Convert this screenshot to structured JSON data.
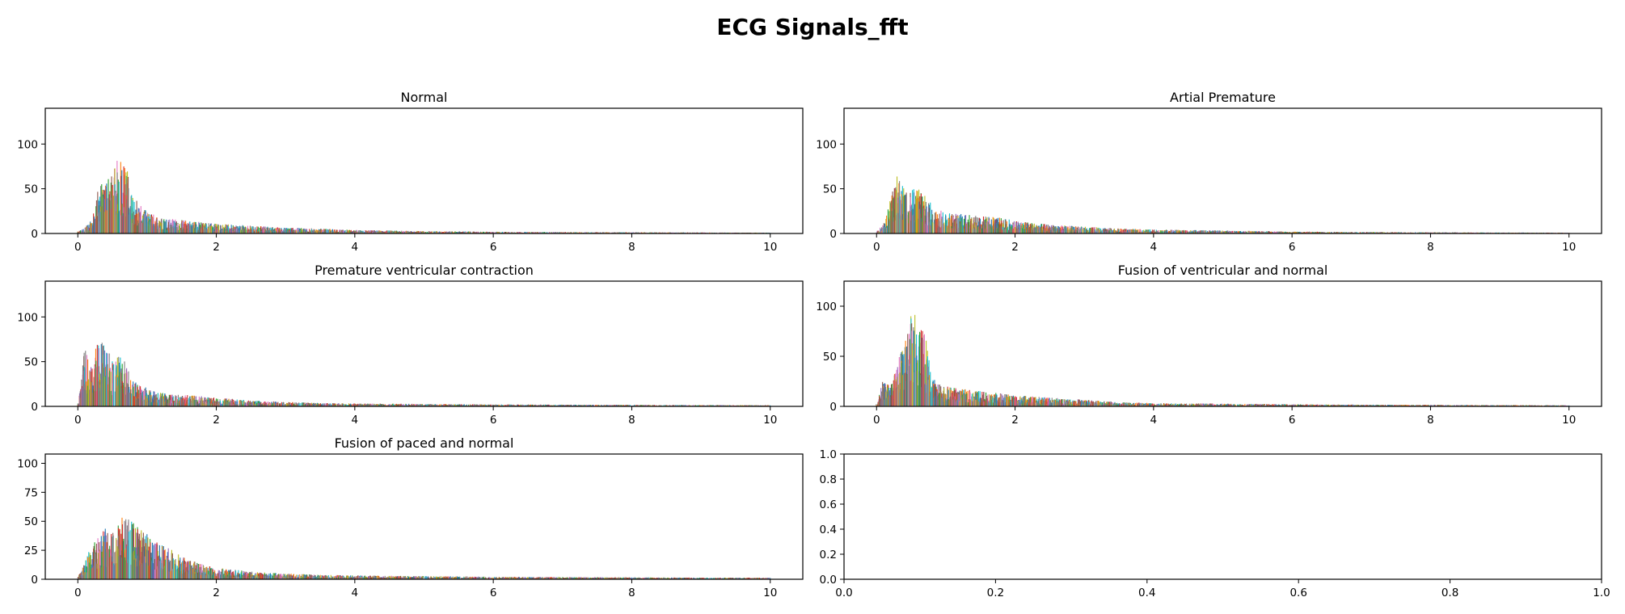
{
  "figure": {
    "title": "ECG Signals_fft"
  },
  "palette": [
    "#1f77b4",
    "#ff7f0e",
    "#2ca02c",
    "#d62728",
    "#9467bd",
    "#8c564b",
    "#e377c2",
    "#7f7f7f",
    "#bcbd22",
    "#17becf"
  ],
  "chart_data": [
    {
      "type": "bar",
      "title": "Normal",
      "xlim": [
        -0.47,
        10.47
      ],
      "ylim": [
        0,
        140
      ],
      "xticks": [
        0,
        2,
        4,
        6,
        8,
        10
      ],
      "yticks": [
        0,
        50,
        100
      ],
      "spectrum": {
        "x_max": 10,
        "bin_width": 0.022,
        "series_count": 8,
        "envelope": [
          [
            0,
            2
          ],
          [
            0.1,
            6
          ],
          [
            0.2,
            14
          ],
          [
            0.3,
            48
          ],
          [
            0.4,
            58
          ],
          [
            0.5,
            62
          ],
          [
            0.6,
            80
          ],
          [
            0.7,
            66
          ],
          [
            0.8,
            40
          ],
          [
            0.9,
            28
          ],
          [
            1.0,
            22
          ],
          [
            1.2,
            16
          ],
          [
            1.5,
            14
          ],
          [
            2.0,
            10
          ],
          [
            2.5,
            8
          ],
          [
            3.0,
            6
          ],
          [
            3.5,
            5
          ],
          [
            4.0,
            3.5
          ],
          [
            5.0,
            2.5
          ],
          [
            6.0,
            1.8
          ],
          [
            7.0,
            1.5
          ],
          [
            8.0,
            1.2
          ],
          [
            9.0,
            1.0
          ],
          [
            10.0,
            0.8
          ]
        ]
      }
    },
    {
      "type": "bar",
      "title": "Artial Premature",
      "xlim": [
        -0.47,
        10.47
      ],
      "ylim": [
        0,
        140
      ],
      "xticks": [
        0,
        2,
        4,
        6,
        8,
        10
      ],
      "yticks": [
        0,
        50,
        100
      ],
      "spectrum": {
        "x_max": 10,
        "bin_width": 0.022,
        "series_count": 8,
        "envelope": [
          [
            0,
            3
          ],
          [
            0.1,
            10
          ],
          [
            0.2,
            38
          ],
          [
            0.3,
            62
          ],
          [
            0.4,
            46
          ],
          [
            0.5,
            44
          ],
          [
            0.6,
            50
          ],
          [
            0.7,
            36
          ],
          [
            0.8,
            30
          ],
          [
            0.9,
            26
          ],
          [
            1.0,
            22
          ],
          [
            1.2,
            20
          ],
          [
            1.5,
            18
          ],
          [
            1.8,
            16
          ],
          [
            2.0,
            13
          ],
          [
            2.5,
            9
          ],
          [
            3.0,
            7
          ],
          [
            3.5,
            5
          ],
          [
            4.0,
            4
          ],
          [
            5.0,
            3
          ],
          [
            6.0,
            2
          ],
          [
            7.0,
            1.5
          ],
          [
            8.0,
            1.2
          ],
          [
            9.0,
            1.0
          ],
          [
            10.0,
            0.8
          ]
        ]
      }
    },
    {
      "type": "bar",
      "title": "Premature ventricular contraction",
      "xlim": [
        -0.47,
        10.47
      ],
      "ylim": [
        0,
        140
      ],
      "xticks": [
        0,
        2,
        4,
        6,
        8,
        10
      ],
      "yticks": [
        0,
        50,
        100
      ],
      "spectrum": {
        "x_max": 10,
        "bin_width": 0.022,
        "series_count": 8,
        "envelope": [
          [
            0,
            3
          ],
          [
            0.1,
            62
          ],
          [
            0.2,
            40
          ],
          [
            0.3,
            70
          ],
          [
            0.4,
            60
          ],
          [
            0.5,
            45
          ],
          [
            0.6,
            52
          ],
          [
            0.7,
            42
          ],
          [
            0.8,
            28
          ],
          [
            0.9,
            22
          ],
          [
            1.0,
            18
          ],
          [
            1.2,
            14
          ],
          [
            1.5,
            12
          ],
          [
            2.0,
            9
          ],
          [
            2.5,
            6
          ],
          [
            3.0,
            4.5
          ],
          [
            3.5,
            3.5
          ],
          [
            4.0,
            3
          ],
          [
            5.0,
            2.5
          ],
          [
            6.0,
            2
          ],
          [
            7.0,
            1.8
          ],
          [
            8.0,
            1.6
          ],
          [
            9.0,
            1.4
          ],
          [
            10.0,
            1.2
          ]
        ]
      }
    },
    {
      "type": "bar",
      "title": "Fusion of ventricular and normal",
      "xlim": [
        -0.47,
        10.47
      ],
      "ylim": [
        0,
        125
      ],
      "xticks": [
        0,
        2,
        4,
        6,
        8,
        10
      ],
      "yticks": [
        0,
        50,
        100
      ],
      "spectrum": {
        "x_max": 10,
        "bin_width": 0.022,
        "series_count": 8,
        "envelope": [
          [
            0,
            2
          ],
          [
            0.1,
            26
          ],
          [
            0.2,
            20
          ],
          [
            0.3,
            40
          ],
          [
            0.4,
            58
          ],
          [
            0.5,
            88
          ],
          [
            0.6,
            82
          ],
          [
            0.7,
            62
          ],
          [
            0.8,
            28
          ],
          [
            0.9,
            20
          ],
          [
            1.0,
            18
          ],
          [
            1.2,
            16
          ],
          [
            1.5,
            14
          ],
          [
            2.0,
            10
          ],
          [
            2.5,
            8
          ],
          [
            3.0,
            6
          ],
          [
            3.5,
            4
          ],
          [
            4.0,
            3
          ],
          [
            5.0,
            2.5
          ],
          [
            6.0,
            2
          ],
          [
            7.0,
            1.6
          ],
          [
            8.0,
            1.4
          ],
          [
            9.0,
            1.2
          ],
          [
            10.0,
            1.0
          ]
        ]
      }
    },
    {
      "type": "bar",
      "title": "Fusion of paced and normal",
      "xlim": [
        -0.47,
        10.47
      ],
      "ylim": [
        0,
        108
      ],
      "xticks": [
        0,
        2,
        4,
        6,
        8,
        10
      ],
      "yticks": [
        0,
        25,
        50,
        75,
        100
      ],
      "spectrum": {
        "x_max": 10,
        "bin_width": 0.022,
        "series_count": 8,
        "envelope": [
          [
            0,
            2
          ],
          [
            0.1,
            14
          ],
          [
            0.2,
            28
          ],
          [
            0.3,
            36
          ],
          [
            0.4,
            40
          ],
          [
            0.5,
            38
          ],
          [
            0.6,
            46
          ],
          [
            0.7,
            52
          ],
          [
            0.8,
            44
          ],
          [
            0.9,
            40
          ],
          [
            1.0,
            36
          ],
          [
            1.2,
            28
          ],
          [
            1.5,
            18
          ],
          [
            1.8,
            12
          ],
          [
            2.0,
            9
          ],
          [
            2.5,
            6
          ],
          [
            3.0,
            4.5
          ],
          [
            3.5,
            3.5
          ],
          [
            4.0,
            3
          ],
          [
            5.0,
            2.5
          ],
          [
            6.0,
            2
          ],
          [
            7.0,
            1.8
          ],
          [
            8.0,
            1.5
          ],
          [
            9.0,
            1.3
          ],
          [
            10.0,
            1.2
          ]
        ]
      }
    },
    {
      "type": "bar",
      "title": "",
      "empty": true,
      "xlim": [
        0,
        1
      ],
      "ylim": [
        0,
        1
      ],
      "xticks": [
        0.0,
        0.2,
        0.4,
        0.6,
        0.8,
        1.0
      ],
      "yticks": [
        0.0,
        0.2,
        0.4,
        0.6,
        0.8,
        1.0
      ]
    }
  ]
}
